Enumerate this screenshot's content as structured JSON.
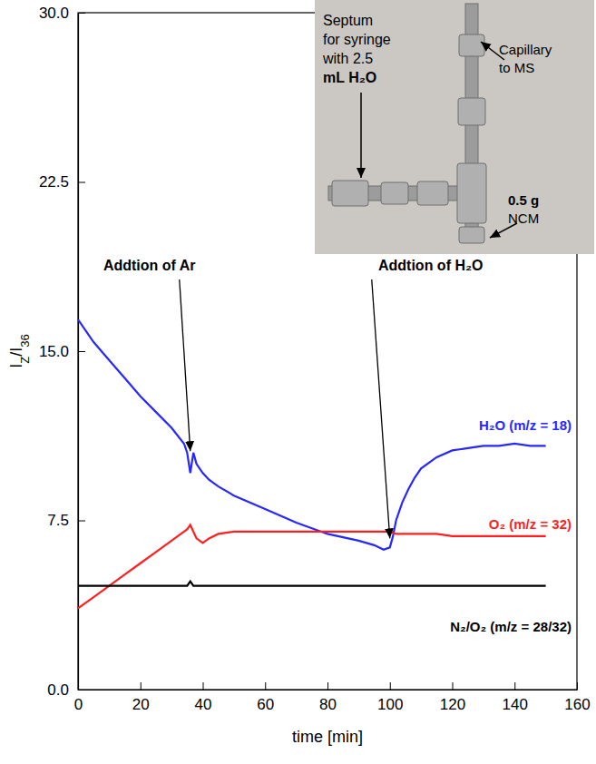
{
  "chart_data": {
    "type": "line",
    "x_label": "time [min]",
    "y_label": "IZ/I36",
    "xlim": [
      0,
      160
    ],
    "xticks": [
      0,
      20,
      40,
      60,
      80,
      100,
      120,
      140,
      160
    ],
    "ylim": [
      0,
      30
    ],
    "yticks": [
      {
        "value": 0,
        "label": "0.0"
      },
      7.5,
      {
        "value": 15,
        "label": "15.0"
      },
      22.5,
      {
        "value": 30,
        "label": "30.0"
      }
    ],
    "x": [
      0,
      5,
      10,
      15,
      20,
      25,
      30,
      34,
      35,
      36,
      37,
      38,
      40,
      42,
      45,
      50,
      60,
      70,
      80,
      90,
      95,
      98,
      100,
      101,
      102,
      104,
      106,
      108,
      110,
      115,
      120,
      125,
      130,
      135,
      140,
      145,
      150
    ],
    "series": [
      {
        "name": "H₂O (m/z = 18)",
        "color": "#2727ff",
        "values": [
          16.4,
          15.4,
          14.6,
          13.8,
          13.0,
          12.3,
          11.6,
          10.9,
          10.5,
          9.6,
          10.5,
          10.0,
          9.6,
          9.3,
          9.0,
          8.6,
          8.0,
          7.4,
          6.9,
          6.6,
          6.4,
          6.2,
          6.3,
          6.8,
          7.5,
          8.3,
          8.9,
          9.4,
          9.8,
          10.3,
          10.6,
          10.7,
          10.8,
          10.8,
          10.9,
          10.8,
          10.8
        ]
      },
      {
        "name": "O₂ (m/z = 32)",
        "color": "#ff1f1f",
        "values": [
          3.6,
          4.1,
          4.6,
          5.1,
          5.6,
          6.1,
          6.6,
          7.0,
          7.1,
          7.3,
          7.0,
          6.7,
          6.5,
          6.7,
          6.9,
          7.0,
          7.0,
          7.0,
          7.0,
          7.0,
          7.0,
          7.0,
          7.0,
          6.95,
          6.9,
          6.9,
          6.9,
          6.9,
          6.9,
          6.9,
          6.8,
          6.8,
          6.8,
          6.8,
          6.8,
          6.8,
          6.8
        ]
      },
      {
        "name": "N₂/O₂ (m/z = 28/32)",
        "color": "#000000",
        "values": [
          4.6,
          4.6,
          4.6,
          4.6,
          4.6,
          4.6,
          4.6,
          4.6,
          4.6,
          4.8,
          4.6,
          4.6,
          4.6,
          4.6,
          4.6,
          4.6,
          4.6,
          4.6,
          4.6,
          4.6,
          4.6,
          4.6,
          4.6,
          4.6,
          4.6,
          4.6,
          4.6,
          4.6,
          4.6,
          4.6,
          4.6,
          4.6,
          4.6,
          4.6,
          4.6,
          4.6,
          4.6
        ]
      }
    ],
    "annotations": [
      {
        "text": "Addtion of Ar",
        "x": 36
      },
      {
        "text": "Addtion of H₂O",
        "x": 100
      }
    ],
    "inset_labels": [
      {
        "lines": [
          "Septum",
          "for syringe",
          "with 2.5",
          "mL H₂O"
        ]
      },
      {
        "lines": [
          "Capillary",
          "to MS"
        ]
      },
      {
        "lines": [
          "0.5 g",
          "NCM"
        ]
      }
    ]
  }
}
